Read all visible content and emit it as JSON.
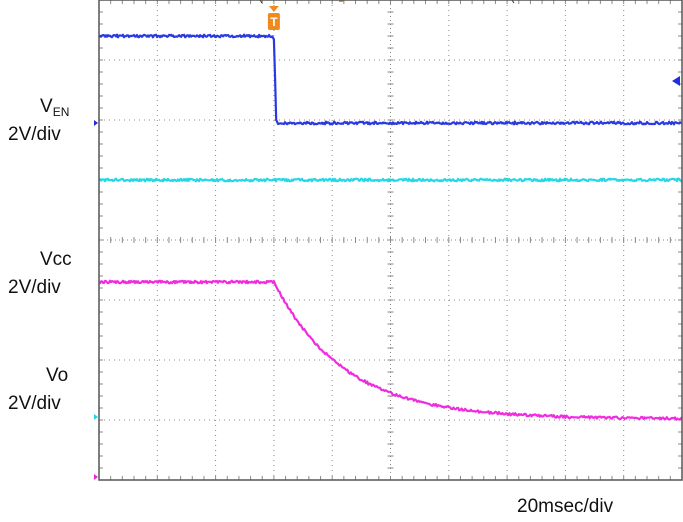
{
  "chart_data": {
    "type": "line",
    "instrument": "oscilloscope",
    "x": {
      "unit": "div",
      "range": [
        0,
        10
      ],
      "divisions": 10
    },
    "y": {
      "unit": "div",
      "range": [
        0,
        8
      ],
      "divisions": 8
    },
    "grid": true,
    "trigger": {
      "marker": "T",
      "x_div": 3.0,
      "color": "#f08a1c"
    },
    "channel_labels": {
      "ven_main": "V",
      "ven_sub": "EN",
      "ven_scale": "2V/div",
      "vcc_name": "Vcc",
      "vcc_scale": "2V/div",
      "vo_name": "Vo",
      "vo_scale": "2V/div"
    },
    "time_scale": "20msec/div",
    "series": [
      {
        "color": "#1f2fe0",
        "points": [
          [
            0,
            7.4
          ],
          [
            2.97,
            7.4
          ],
          [
            3.0,
            7.36
          ],
          [
            3.04,
            6.0
          ],
          [
            3.07,
            5.95
          ],
          [
            10,
            5.95
          ]
        ]
      },
      {
        "color": "#1ad6e6",
        "points": [
          [
            0,
            5.0
          ],
          [
            10,
            5.0
          ]
        ]
      },
      {
        "color": "#ee22dd",
        "decay": {
          "start_div": 3.0,
          "start_level": 3.3,
          "end_level": 1.02,
          "tau_div": 1.2
        },
        "points": [
          [
            0,
            3.3
          ],
          [
            3.0,
            3.3
          ]
        ]
      }
    ],
    "channel_markers": [
      {
        "color": "#1f2fe0",
        "y_div": 5.95
      },
      {
        "color": "#1ad6e6",
        "y_div": 1.05
      },
      {
        "color": "#ee22dd",
        "y_div": 0.05
      }
    ],
    "level_marker": {
      "color": "#1f2fe0",
      "y_div": 6.65
    },
    "colors": {
      "grid": "#8a8a8a",
      "frame": "#555555",
      "trigger": "#f08a1c"
    }
  }
}
